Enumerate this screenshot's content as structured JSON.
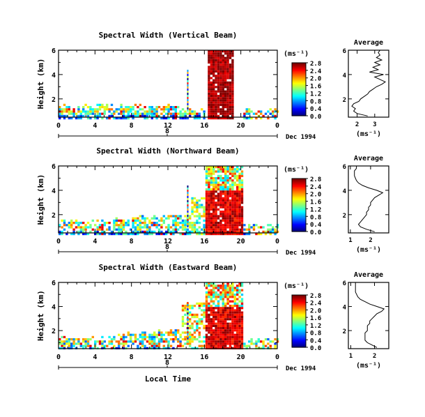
{
  "chart_data": [
    {
      "type": "heatmap",
      "title": "Spectral Width (Vertical Beam)",
      "ylabel": "Height (km)",
      "xlabel": "",
      "x_ticks": [
        "0",
        "4",
        "8",
        "12",
        "16",
        "20",
        "0"
      ],
      "y_ticks": [
        "2",
        "4",
        "6"
      ],
      "xlim": [
        0,
        24
      ],
      "ylim": [
        0.5,
        6
      ],
      "date_tick": "8",
      "date_label": "Dec 1994",
      "colorbar": {
        "unit": "(ms⁻¹)",
        "ticks": [
          "0.0",
          "0.4",
          "0.8",
          "1.2",
          "1.6",
          "2.0",
          "2.4",
          "2.8"
        ],
        "range": [
          0,
          2.8
        ]
      },
      "average": {
        "title": "Average",
        "xlabel": "(ms⁻¹)",
        "x_ticks": [
          "2",
          "3"
        ],
        "xlim": [
          1.5,
          3.8
        ],
        "profile": [
          [
            0.6,
            2.6
          ],
          [
            0.8,
            2.0
          ],
          [
            1.0,
            1.8
          ],
          [
            1.2,
            1.9
          ],
          [
            1.4,
            1.7
          ],
          [
            1.6,
            1.8
          ],
          [
            1.8,
            2.1
          ],
          [
            2.0,
            2.2
          ],
          [
            2.2,
            2.4
          ],
          [
            2.4,
            2.6
          ],
          [
            2.6,
            2.7
          ],
          [
            2.8,
            2.9
          ],
          [
            3.0,
            3.1
          ],
          [
            3.2,
            3.4
          ],
          [
            3.4,
            3.6
          ],
          [
            3.6,
            3.3
          ],
          [
            3.8,
            3.0
          ],
          [
            4.0,
            3.5
          ],
          [
            4.2,
            2.7
          ],
          [
            4.4,
            3.2
          ],
          [
            4.6,
            2.9
          ],
          [
            4.8,
            3.3
          ],
          [
            5.0,
            3.0
          ],
          [
            5.2,
            3.4
          ],
          [
            5.4,
            3.1
          ],
          [
            5.6,
            3.3
          ],
          [
            5.8,
            3.2
          ],
          [
            6.0,
            3.3
          ]
        ]
      }
    },
    {
      "type": "heatmap",
      "title": "Spectral Width (Northward Beam)",
      "ylabel": "Height (km)",
      "xlabel": "",
      "x_ticks": [
        "0",
        "4",
        "8",
        "12",
        "16",
        "20",
        "0"
      ],
      "y_ticks": [
        "2",
        "4",
        "6"
      ],
      "xlim": [
        0,
        24
      ],
      "ylim": [
        0.5,
        6
      ],
      "date_tick": "8",
      "date_label": "Dec 1994",
      "colorbar": {
        "unit": "(ms⁻¹)",
        "ticks": [
          "0.0",
          "0.4",
          "0.8",
          "1.2",
          "1.6",
          "2.0",
          "2.4",
          "2.8"
        ],
        "range": [
          0,
          2.8
        ]
      },
      "average": {
        "title": "Average",
        "xlabel": "(ms⁻¹)",
        "x_ticks": [
          "1",
          "2"
        ],
        "xlim": [
          0.9,
          2.9
        ],
        "profile": [
          [
            0.6,
            2.2
          ],
          [
            0.8,
            1.8
          ],
          [
            1.0,
            1.5
          ],
          [
            1.2,
            1.4
          ],
          [
            1.4,
            1.5
          ],
          [
            1.6,
            1.6
          ],
          [
            1.8,
            1.7
          ],
          [
            2.0,
            1.8
          ],
          [
            2.2,
            1.8
          ],
          [
            2.4,
            1.9
          ],
          [
            2.6,
            1.9
          ],
          [
            2.8,
            2.0
          ],
          [
            3.0,
            2.0
          ],
          [
            3.2,
            2.1
          ],
          [
            3.4,
            2.2
          ],
          [
            3.6,
            2.4
          ],
          [
            3.8,
            2.6
          ],
          [
            4.0,
            2.3
          ],
          [
            4.2,
            1.9
          ],
          [
            4.4,
            1.6
          ],
          [
            4.6,
            1.4
          ],
          [
            4.8,
            1.3
          ],
          [
            5.0,
            1.25
          ],
          [
            5.2,
            1.2
          ],
          [
            5.4,
            1.2
          ],
          [
            5.6,
            1.2
          ],
          [
            5.8,
            1.3
          ],
          [
            6.0,
            1.3
          ]
        ]
      }
    },
    {
      "type": "heatmap",
      "title": "Spectral Width (Eastward Beam)",
      "ylabel": "Height (km)",
      "xlabel": "Local Time",
      "x_ticks": [
        "0",
        "4",
        "8",
        "12",
        "16",
        "20",
        "0"
      ],
      "y_ticks": [
        "2",
        "4",
        "6"
      ],
      "xlim": [
        0,
        24
      ],
      "ylim": [
        0.5,
        6
      ],
      "date_tick": "8",
      "date_label": "Dec 1994",
      "colorbar": {
        "unit": "(ms⁻¹)",
        "ticks": [
          "0.0",
          "0.4",
          "0.8",
          "1.2",
          "1.6",
          "2.0",
          "2.4",
          "2.8"
        ],
        "range": [
          0,
          2.8
        ]
      },
      "average": {
        "title": "Average",
        "xlabel": "(ms⁻¹)",
        "x_ticks": [
          "1",
          "2"
        ],
        "xlim": [
          0.9,
          2.6
        ],
        "profile": [
          [
            0.6,
            2.1
          ],
          [
            0.8,
            1.9
          ],
          [
            1.0,
            1.7
          ],
          [
            1.2,
            1.6
          ],
          [
            1.4,
            1.6
          ],
          [
            1.6,
            1.6
          ],
          [
            1.8,
            1.6
          ],
          [
            2.0,
            1.7
          ],
          [
            2.2,
            1.7
          ],
          [
            2.4,
            1.7
          ],
          [
            2.6,
            1.8
          ],
          [
            2.8,
            1.8
          ],
          [
            3.0,
            1.9
          ],
          [
            3.2,
            2.0
          ],
          [
            3.4,
            2.1
          ],
          [
            3.6,
            2.3
          ],
          [
            3.8,
            2.4
          ],
          [
            4.0,
            2.1
          ],
          [
            4.2,
            1.8
          ],
          [
            4.4,
            1.6
          ],
          [
            4.6,
            1.4
          ],
          [
            4.8,
            1.3
          ],
          [
            5.0,
            1.25
          ],
          [
            5.2,
            1.2
          ],
          [
            5.4,
            1.2
          ],
          [
            5.6,
            1.2
          ],
          [
            5.8,
            1.2
          ],
          [
            6.0,
            1.2
          ]
        ]
      }
    }
  ]
}
